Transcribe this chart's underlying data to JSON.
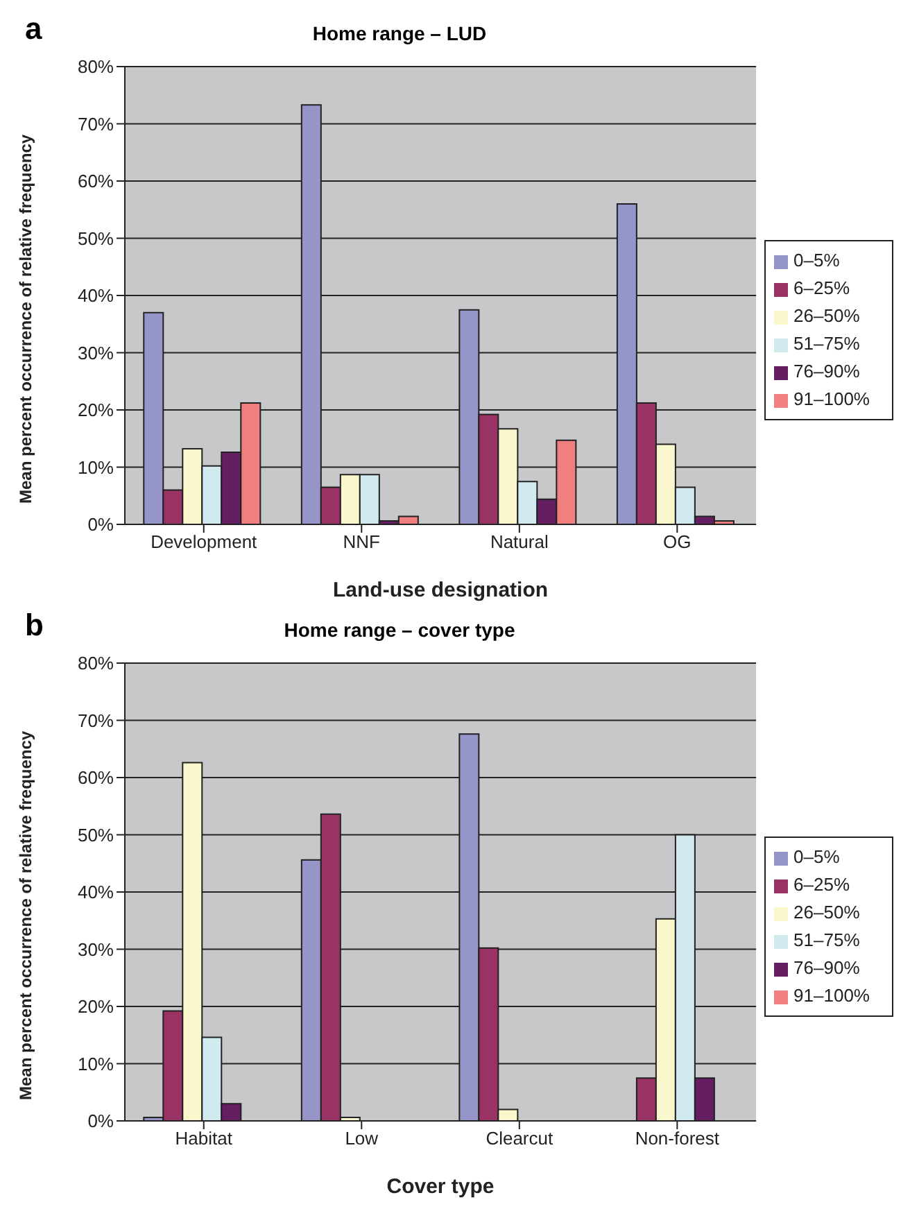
{
  "chart_data": [
    {
      "type": "bar",
      "title": "Home range – LUD",
      "xlabel": "Land-use designation",
      "ylabel": "Mean percent occurrence of relative frequency",
      "annotations": [
        "a"
      ],
      "categories": [
        "Development",
        "NNF",
        "Natural",
        "OG"
      ],
      "series": [
        {
          "name": "0–5%",
          "color": "#9595c9",
          "values": [
            37,
            73.3,
            37.5,
            56
          ]
        },
        {
          "name": "6–25%",
          "color": "#993366",
          "values": [
            6,
            6.5,
            19.2,
            21.2
          ]
        },
        {
          "name": "26–50%",
          "color": "#fbf7cc",
          "values": [
            13.2,
            8.7,
            16.7,
            14
          ]
        },
        {
          "name": "51–75%",
          "color": "#d1eaf0",
          "values": [
            10.2,
            8.7,
            7.5,
            6.5
          ]
        },
        {
          "name": "76–90%",
          "color": "#661e63",
          "values": [
            12.6,
            0.6,
            4.4,
            1.4
          ]
        },
        {
          "name": "91–100%",
          "color": "#f08080",
          "values": [
            21.2,
            1.4,
            14.7,
            0.6
          ]
        }
      ],
      "ylim": [
        0,
        80
      ],
      "yticks": [
        {
          "value": 0,
          "label": "0%"
        },
        {
          "value": 10,
          "label": "10%"
        },
        {
          "value": 20,
          "label": "20%"
        },
        {
          "value": 30,
          "label": "30%"
        },
        {
          "value": 40,
          "label": "40%"
        },
        {
          "value": 50,
          "label": "50%"
        },
        {
          "value": 60,
          "label": "60%"
        },
        {
          "value": 70,
          "label": "70%"
        },
        {
          "value": 80,
          "label": "80%"
        }
      ],
      "grid": "y",
      "legend": "right"
    },
    {
      "type": "bar",
      "title": "Home range – cover type",
      "xlabel": "Cover type",
      "ylabel": "Mean percent occurrence of relative frequency",
      "annotations": [
        "b"
      ],
      "categories": [
        "Habitat",
        "Low",
        "Clearcut",
        "Non-forest"
      ],
      "series": [
        {
          "name": "0–5%",
          "color": "#9595c9",
          "values": [
            0.6,
            45.6,
            67.6,
            0
          ]
        },
        {
          "name": "6–25%",
          "color": "#993366",
          "values": [
            19.2,
            53.6,
            30.2,
            7.5
          ]
        },
        {
          "name": "26–50%",
          "color": "#fbf7cc",
          "values": [
            62.6,
            0.6,
            2,
            35.3
          ]
        },
        {
          "name": "51–75%",
          "color": "#d1eaf0",
          "values": [
            14.6,
            0,
            0,
            50
          ]
        },
        {
          "name": "76–90%",
          "color": "#661e63",
          "values": [
            3,
            0,
            0,
            7.5
          ]
        },
        {
          "name": "91–100%",
          "color": "#f08080",
          "values": [
            0,
            0,
            0,
            0
          ]
        }
      ],
      "ylim": [
        0,
        80
      ],
      "yticks": [
        {
          "value": 0,
          "label": "0%"
        },
        {
          "value": 10,
          "label": "10%"
        },
        {
          "value": 20,
          "label": "20%"
        },
        {
          "value": 30,
          "label": "30%"
        },
        {
          "value": 40,
          "label": "40%"
        },
        {
          "value": 50,
          "label": "50%"
        },
        {
          "value": 60,
          "label": "60%"
        },
        {
          "value": 70,
          "label": "70%"
        },
        {
          "value": 80,
          "label": "80%"
        }
      ],
      "grid": "y",
      "legend": "right"
    }
  ]
}
